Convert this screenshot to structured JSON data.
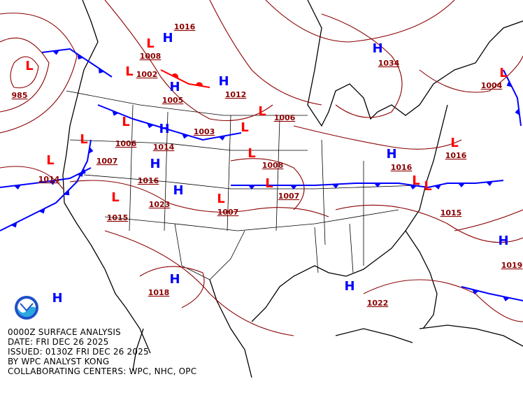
{
  "caption": {
    "line1": "0000Z SURFACE ANALYSIS",
    "line2": "DATE: FRI DEC 26 2025",
    "line3": "ISSUED: 0130Z FRI DEC 26 2025",
    "line4": "BY WPC ANALYST KONG",
    "line5": "COLLABORATING CENTERS: WPC, NHC, OPC"
  },
  "logo": {
    "text": "NOAA"
  },
  "colors": {
    "high": "#0000ff",
    "low": "#ff0000",
    "isobar": "#8b0000",
    "cold_front": "#0000ff",
    "warm_front": "#ff0000",
    "coastline": "#000000",
    "borders": "#000000",
    "dryline": "#ff8c00"
  },
  "pressure_centers": [
    {
      "type": "H",
      "value": "1016"
    },
    {
      "type": "L",
      "value": "1008"
    },
    {
      "type": "L",
      "value": "1002"
    },
    {
      "type": "H",
      "value": "1005"
    },
    {
      "type": "H",
      "value": "1012"
    },
    {
      "type": "L",
      "value": "985"
    },
    {
      "type": "H",
      "value": "1034"
    },
    {
      "type": "L",
      "value": "1006"
    },
    {
      "type": "L",
      "value": "1003"
    },
    {
      "type": "L",
      "value": "1006"
    },
    {
      "type": "L",
      "value": "1007"
    },
    {
      "type": "L",
      "value": "1014"
    },
    {
      "type": "H",
      "value": "1014"
    },
    {
      "type": "H",
      "value": "1016"
    },
    {
      "type": "H",
      "value": "1023"
    },
    {
      "type": "L",
      "value": "1015"
    },
    {
      "type": "L",
      "value": "1007"
    },
    {
      "type": "L",
      "value": "1007"
    },
    {
      "type": "L",
      "value": "1008"
    },
    {
      "type": "H",
      "value": "1016"
    },
    {
      "type": "L",
      "value": ""
    },
    {
      "type": "L",
      "value": "1015"
    },
    {
      "type": "H",
      "value": "1018"
    },
    {
      "type": "H",
      "value": "1022"
    },
    {
      "type": "H",
      "value": "1019"
    },
    {
      "type": "H",
      "value": ""
    },
    {
      "type": "L",
      "value": "1016"
    },
    {
      "type": "L",
      "value": "1004"
    }
  ]
}
